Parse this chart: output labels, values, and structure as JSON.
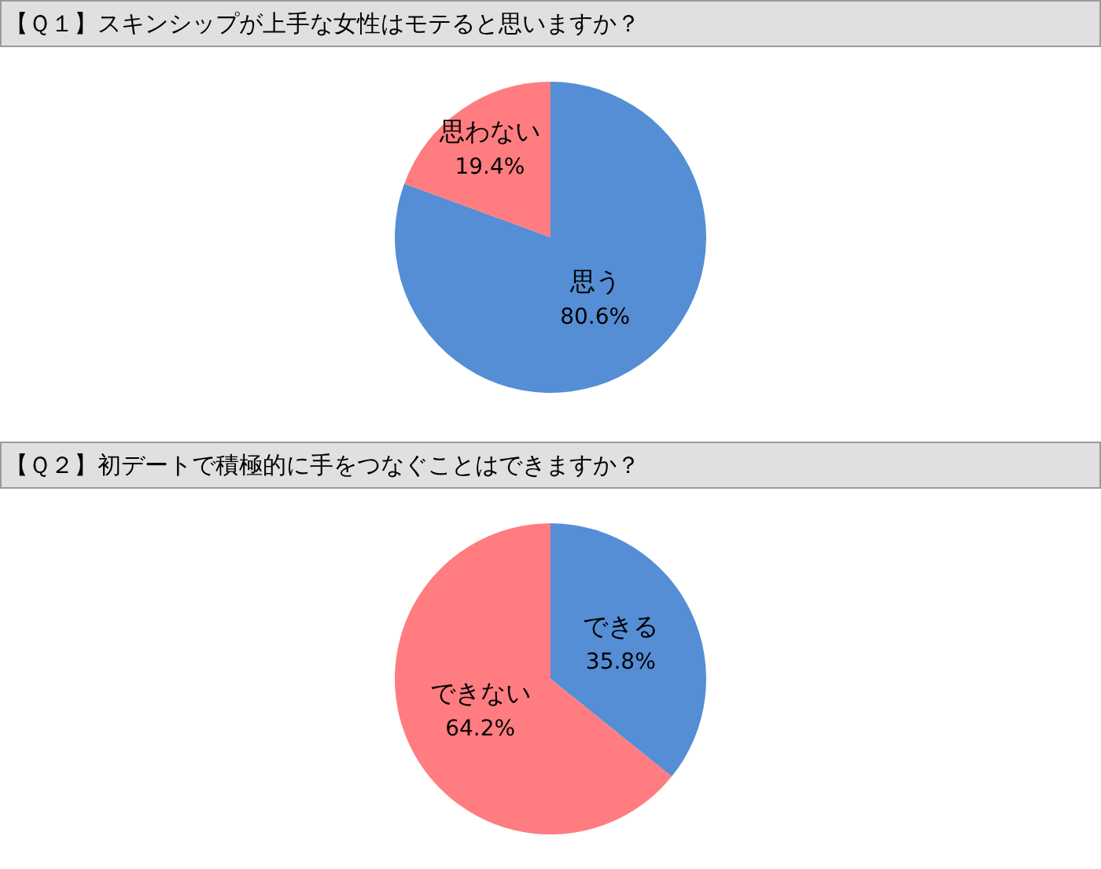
{
  "chart_data": [
    {
      "type": "pie",
      "title": "【Ｑ１】スキンシップが上手な女性はモテると思いますか？",
      "categories": [
        "思う",
        "思わない"
      ],
      "values": [
        80.6,
        19.4
      ],
      "colors": [
        "#558ed5",
        "#ff7c80"
      ],
      "value_labels": [
        "80.6%",
        "19.4%"
      ]
    },
    {
      "type": "pie",
      "title": "【Ｑ２】初デートで積極的に手をつなぐことはできますか？",
      "categories": [
        "できる",
        "できない"
      ],
      "values": [
        35.8,
        64.2
      ],
      "colors": [
        "#558ed5",
        "#ff7c80"
      ],
      "value_labels": [
        "35.8%",
        "64.2%"
      ]
    }
  ]
}
